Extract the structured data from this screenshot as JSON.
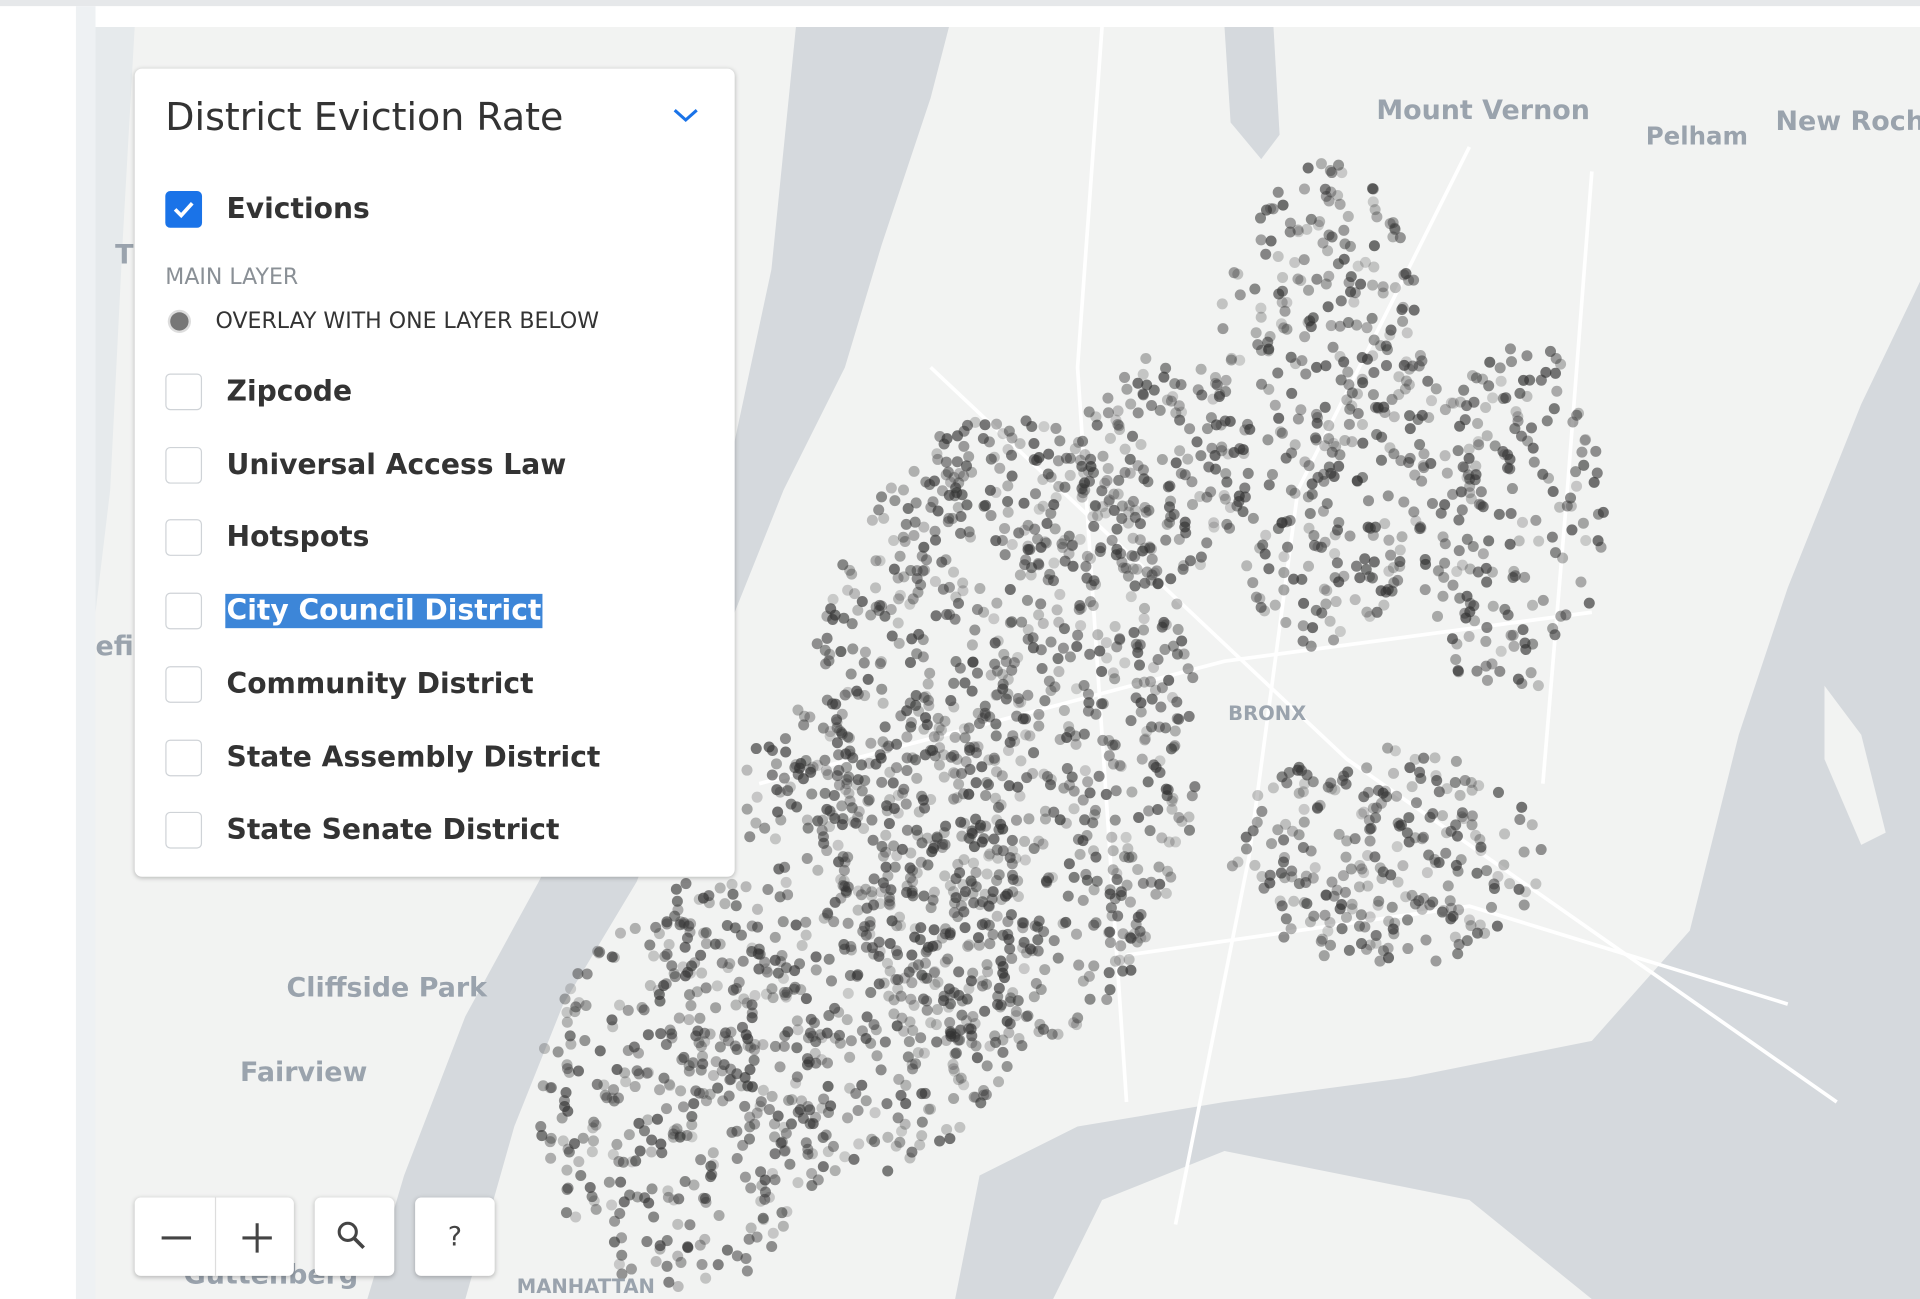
{
  "panel": {
    "title": "District Eviction Rate",
    "layers": [
      {
        "label": "Evictions",
        "checked": true
      }
    ],
    "section_label": "MAIN LAYER",
    "overlay_label": "OVERLAY WITH ONE LAYER BELOW",
    "overlays": [
      {
        "label": "Zipcode",
        "checked": false
      },
      {
        "label": "Universal Access Law",
        "checked": false
      },
      {
        "label": "Hotspots",
        "checked": false
      },
      {
        "label": "City Council District",
        "checked": false,
        "selected": true
      },
      {
        "label": "Community District",
        "checked": false
      },
      {
        "label": "State Assembly District",
        "checked": false
      },
      {
        "label": "State Senate District",
        "checked": false
      }
    ]
  },
  "map": {
    "labels": [
      "Mount Vernon",
      "Pelham",
      "New Roch",
      "T",
      "efi",
      "Cliffside Park",
      "Fairview",
      "BRONX",
      "MANHATTAN",
      "Guttenberg"
    ]
  },
  "controls": {
    "help": "?"
  }
}
